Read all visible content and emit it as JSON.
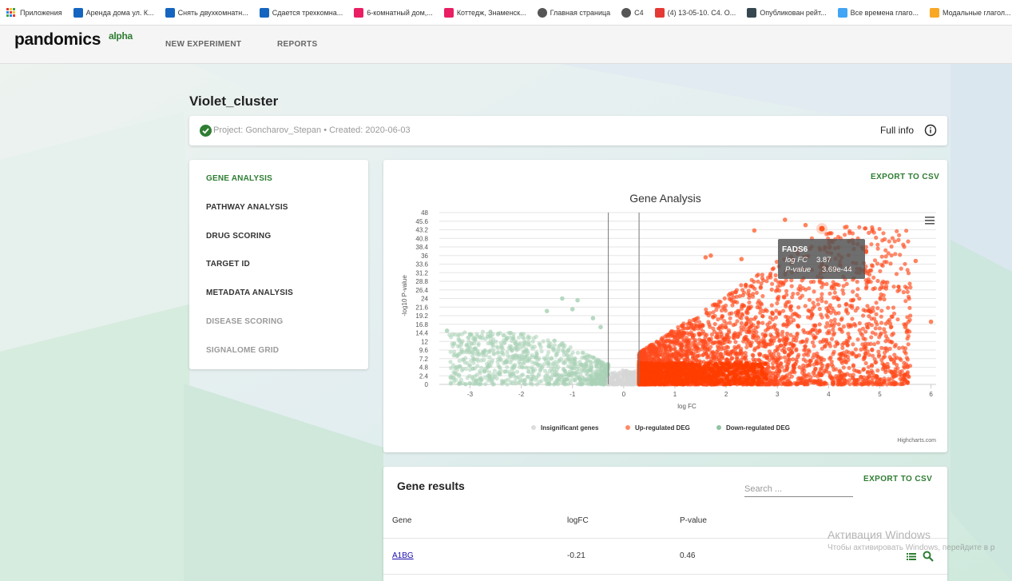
{
  "bookmarks": [
    {
      "label": "Приложения",
      "icon": "apps-grid-icon",
      "color": "#e53935"
    },
    {
      "label": "Аренда дома ул. К...",
      "icon": "avito-icon",
      "color": "#1565c0"
    },
    {
      "label": "Снять двухкомнатн...",
      "icon": "avito-icon",
      "color": "#1565c0"
    },
    {
      "label": "Сдается трехкомна...",
      "icon": "avito-icon",
      "color": "#1565c0"
    },
    {
      "label": "6-комнатный дом,...",
      "icon": "cian-icon",
      "color": "#e91e63"
    },
    {
      "label": "Коттедж, Знаменск...",
      "icon": "cian-icon",
      "color": "#e91e63"
    },
    {
      "label": "Главная страница",
      "icon": "globe-icon",
      "color": "#555555"
    },
    {
      "label": "C4",
      "icon": "globe-icon",
      "color": "#555555"
    },
    {
      "label": "(4) 13-05-10. С4. О...",
      "icon": "youtube-icon",
      "color": "#e53935"
    },
    {
      "label": "Опубликован рейт...",
      "icon": "monitor-icon",
      "color": "#37474f"
    },
    {
      "label": "Все времена глаго...",
      "icon": "s-icon",
      "color": "#42a5f5"
    },
    {
      "label": "Модальные глагол...",
      "icon": "burger-icon",
      "color": "#f9a825"
    }
  ],
  "header": {
    "logo": "pandomics",
    "logo_badge": "alpha",
    "nav": [
      "NEW EXPERIMENT",
      "REPORTS"
    ]
  },
  "page": {
    "title": "Violet_cluster",
    "project_line": "Project: Goncharov_Stepan • Created: 2020-06-03",
    "full_info": "Full info"
  },
  "menu": [
    {
      "label": "GENE ANALYSIS",
      "state": "active"
    },
    {
      "label": "PATHWAY ANALYSIS",
      "state": "normal"
    },
    {
      "label": "DRUG SCORING",
      "state": "normal"
    },
    {
      "label": "TARGET ID",
      "state": "normal"
    },
    {
      "label": "METADATA ANALYSIS",
      "state": "normal"
    },
    {
      "label": "DISEASE SCORING",
      "state": "disabled"
    },
    {
      "label": "SIGNALOME GRID",
      "state": "disabled"
    }
  ],
  "export_label": "EXPORT TO CSV",
  "chart_data": {
    "type": "scatter",
    "title": "Gene Analysis",
    "xlabel": "log FC",
    "ylabel": "-log10 P-value",
    "xlim": [
      -3.6,
      6.1
    ],
    "ylim": [
      0,
      48
    ],
    "x_ticks": [
      "-3",
      "-2",
      "-1",
      "0",
      "1",
      "2",
      "3",
      "4",
      "5",
      "6"
    ],
    "y_ticks": [
      "0",
      "2.4",
      "4.8",
      "7.2",
      "9.6",
      "12",
      "14.4",
      "16.8",
      "19.2",
      "21.6",
      "24",
      "26.4",
      "28.8",
      "31.2",
      "33.6",
      "36",
      "38.4",
      "40.8",
      "43.2",
      "45.6",
      "48"
    ],
    "threshold_lines_x": [
      -0.3,
      0.3
    ],
    "grid": true,
    "legend_position": "bottom",
    "series": [
      {
        "name": "Insignificant genes",
        "color": "#dddddd",
        "points": [
          [
            -0.2,
            0.8
          ],
          [
            0.1,
            1.4
          ],
          [
            -0.1,
            2.1
          ],
          [
            0.2,
            3.0
          ],
          [
            0.05,
            0.5
          ],
          [
            -0.25,
            1.9
          ]
        ]
      },
      {
        "name": "Up-regulated DEG",
        "color": "#ff5722",
        "points": [
          [
            3.87,
            43.5
          ],
          [
            3.15,
            46.0
          ],
          [
            2.55,
            43.0
          ],
          [
            3.55,
            44.5
          ],
          [
            4.35,
            44.0
          ],
          [
            5.7,
            34.5
          ],
          [
            6.0,
            17.5
          ],
          [
            5.5,
            16.0
          ],
          [
            5.2,
            17.0
          ],
          [
            4.4,
            40.0
          ],
          [
            1.6,
            35.5
          ],
          [
            2.3,
            35.0
          ],
          [
            1.7,
            36.0
          ]
        ]
      },
      {
        "name": "Down-regulated DEG",
        "color": "#8fc4a3",
        "points": [
          [
            -3.45,
            15.0
          ],
          [
            -3.0,
            14.0
          ],
          [
            -2.9,
            10.0
          ],
          [
            -3.25,
            8.0
          ],
          [
            -3.2,
            5.0
          ],
          [
            -2.6,
            13.5
          ],
          [
            -2.0,
            14.0
          ],
          [
            -1.5,
            20.5
          ],
          [
            -1.0,
            21.0
          ],
          [
            -0.6,
            18.5
          ],
          [
            -0.45,
            16.0
          ],
          [
            -1.2,
            24.0
          ],
          [
            -0.9,
            23.5
          ]
        ]
      }
    ],
    "tooltip": {
      "gene": "FADS6",
      "logfc_label": "log FC",
      "logfc": "3.87",
      "pvalue_label": "P-value",
      "pvalue": "3.69e-44"
    },
    "credits": "Highcharts.com"
  },
  "results": {
    "title": "Gene results",
    "search_placeholder": "Search ...",
    "columns": [
      "Gene",
      "logFC",
      "P-value"
    ],
    "rows": [
      {
        "gene": "A1BG",
        "logfc": "-0.21",
        "pvalue": "0.46"
      }
    ]
  },
  "watermark": {
    "line1": "Активация Windows",
    "line2": "Чтобы активировать Windows, перейдите в р"
  }
}
